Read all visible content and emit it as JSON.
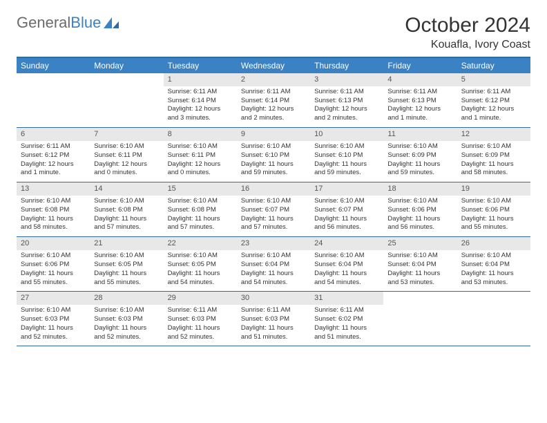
{
  "logo": {
    "part1": "General",
    "part2": "Blue"
  },
  "header": {
    "month": "October 2024",
    "location": "Kouafla, Ivory Coast"
  },
  "dayNames": [
    "Sunday",
    "Monday",
    "Tuesday",
    "Wednesday",
    "Thursday",
    "Friday",
    "Saturday"
  ],
  "colors": {
    "header_bg": "#3b82c4",
    "header_border": "#2b6ca3",
    "daynum_bg": "#e8e8e8",
    "text": "#333333",
    "logo_gray": "#6b6b6b",
    "logo_blue": "#3b82c4"
  },
  "weeks": [
    [
      {
        "n": "",
        "sr": "",
        "ss": "",
        "dl": ""
      },
      {
        "n": "",
        "sr": "",
        "ss": "",
        "dl": ""
      },
      {
        "n": "1",
        "sr": "Sunrise: 6:11 AM",
        "ss": "Sunset: 6:14 PM",
        "dl": "Daylight: 12 hours and 3 minutes."
      },
      {
        "n": "2",
        "sr": "Sunrise: 6:11 AM",
        "ss": "Sunset: 6:14 PM",
        "dl": "Daylight: 12 hours and 2 minutes."
      },
      {
        "n": "3",
        "sr": "Sunrise: 6:11 AM",
        "ss": "Sunset: 6:13 PM",
        "dl": "Daylight: 12 hours and 2 minutes."
      },
      {
        "n": "4",
        "sr": "Sunrise: 6:11 AM",
        "ss": "Sunset: 6:13 PM",
        "dl": "Daylight: 12 hours and 1 minute."
      },
      {
        "n": "5",
        "sr": "Sunrise: 6:11 AM",
        "ss": "Sunset: 6:12 PM",
        "dl": "Daylight: 12 hours and 1 minute."
      }
    ],
    [
      {
        "n": "6",
        "sr": "Sunrise: 6:11 AM",
        "ss": "Sunset: 6:12 PM",
        "dl": "Daylight: 12 hours and 1 minute."
      },
      {
        "n": "7",
        "sr": "Sunrise: 6:10 AM",
        "ss": "Sunset: 6:11 PM",
        "dl": "Daylight: 12 hours and 0 minutes."
      },
      {
        "n": "8",
        "sr": "Sunrise: 6:10 AM",
        "ss": "Sunset: 6:11 PM",
        "dl": "Daylight: 12 hours and 0 minutes."
      },
      {
        "n": "9",
        "sr": "Sunrise: 6:10 AM",
        "ss": "Sunset: 6:10 PM",
        "dl": "Daylight: 11 hours and 59 minutes."
      },
      {
        "n": "10",
        "sr": "Sunrise: 6:10 AM",
        "ss": "Sunset: 6:10 PM",
        "dl": "Daylight: 11 hours and 59 minutes."
      },
      {
        "n": "11",
        "sr": "Sunrise: 6:10 AM",
        "ss": "Sunset: 6:09 PM",
        "dl": "Daylight: 11 hours and 59 minutes."
      },
      {
        "n": "12",
        "sr": "Sunrise: 6:10 AM",
        "ss": "Sunset: 6:09 PM",
        "dl": "Daylight: 11 hours and 58 minutes."
      }
    ],
    [
      {
        "n": "13",
        "sr": "Sunrise: 6:10 AM",
        "ss": "Sunset: 6:08 PM",
        "dl": "Daylight: 11 hours and 58 minutes."
      },
      {
        "n": "14",
        "sr": "Sunrise: 6:10 AM",
        "ss": "Sunset: 6:08 PM",
        "dl": "Daylight: 11 hours and 57 minutes."
      },
      {
        "n": "15",
        "sr": "Sunrise: 6:10 AM",
        "ss": "Sunset: 6:08 PM",
        "dl": "Daylight: 11 hours and 57 minutes."
      },
      {
        "n": "16",
        "sr": "Sunrise: 6:10 AM",
        "ss": "Sunset: 6:07 PM",
        "dl": "Daylight: 11 hours and 57 minutes."
      },
      {
        "n": "17",
        "sr": "Sunrise: 6:10 AM",
        "ss": "Sunset: 6:07 PM",
        "dl": "Daylight: 11 hours and 56 minutes."
      },
      {
        "n": "18",
        "sr": "Sunrise: 6:10 AM",
        "ss": "Sunset: 6:06 PM",
        "dl": "Daylight: 11 hours and 56 minutes."
      },
      {
        "n": "19",
        "sr": "Sunrise: 6:10 AM",
        "ss": "Sunset: 6:06 PM",
        "dl": "Daylight: 11 hours and 55 minutes."
      }
    ],
    [
      {
        "n": "20",
        "sr": "Sunrise: 6:10 AM",
        "ss": "Sunset: 6:06 PM",
        "dl": "Daylight: 11 hours and 55 minutes."
      },
      {
        "n": "21",
        "sr": "Sunrise: 6:10 AM",
        "ss": "Sunset: 6:05 PM",
        "dl": "Daylight: 11 hours and 55 minutes."
      },
      {
        "n": "22",
        "sr": "Sunrise: 6:10 AM",
        "ss": "Sunset: 6:05 PM",
        "dl": "Daylight: 11 hours and 54 minutes."
      },
      {
        "n": "23",
        "sr": "Sunrise: 6:10 AM",
        "ss": "Sunset: 6:04 PM",
        "dl": "Daylight: 11 hours and 54 minutes."
      },
      {
        "n": "24",
        "sr": "Sunrise: 6:10 AM",
        "ss": "Sunset: 6:04 PM",
        "dl": "Daylight: 11 hours and 54 minutes."
      },
      {
        "n": "25",
        "sr": "Sunrise: 6:10 AM",
        "ss": "Sunset: 6:04 PM",
        "dl": "Daylight: 11 hours and 53 minutes."
      },
      {
        "n": "26",
        "sr": "Sunrise: 6:10 AM",
        "ss": "Sunset: 6:04 PM",
        "dl": "Daylight: 11 hours and 53 minutes."
      }
    ],
    [
      {
        "n": "27",
        "sr": "Sunrise: 6:10 AM",
        "ss": "Sunset: 6:03 PM",
        "dl": "Daylight: 11 hours and 52 minutes."
      },
      {
        "n": "28",
        "sr": "Sunrise: 6:10 AM",
        "ss": "Sunset: 6:03 PM",
        "dl": "Daylight: 11 hours and 52 minutes."
      },
      {
        "n": "29",
        "sr": "Sunrise: 6:11 AM",
        "ss": "Sunset: 6:03 PM",
        "dl": "Daylight: 11 hours and 52 minutes."
      },
      {
        "n": "30",
        "sr": "Sunrise: 6:11 AM",
        "ss": "Sunset: 6:03 PM",
        "dl": "Daylight: 11 hours and 51 minutes."
      },
      {
        "n": "31",
        "sr": "Sunrise: 6:11 AM",
        "ss": "Sunset: 6:02 PM",
        "dl": "Daylight: 11 hours and 51 minutes."
      },
      {
        "n": "",
        "sr": "",
        "ss": "",
        "dl": ""
      },
      {
        "n": "",
        "sr": "",
        "ss": "",
        "dl": ""
      }
    ]
  ]
}
